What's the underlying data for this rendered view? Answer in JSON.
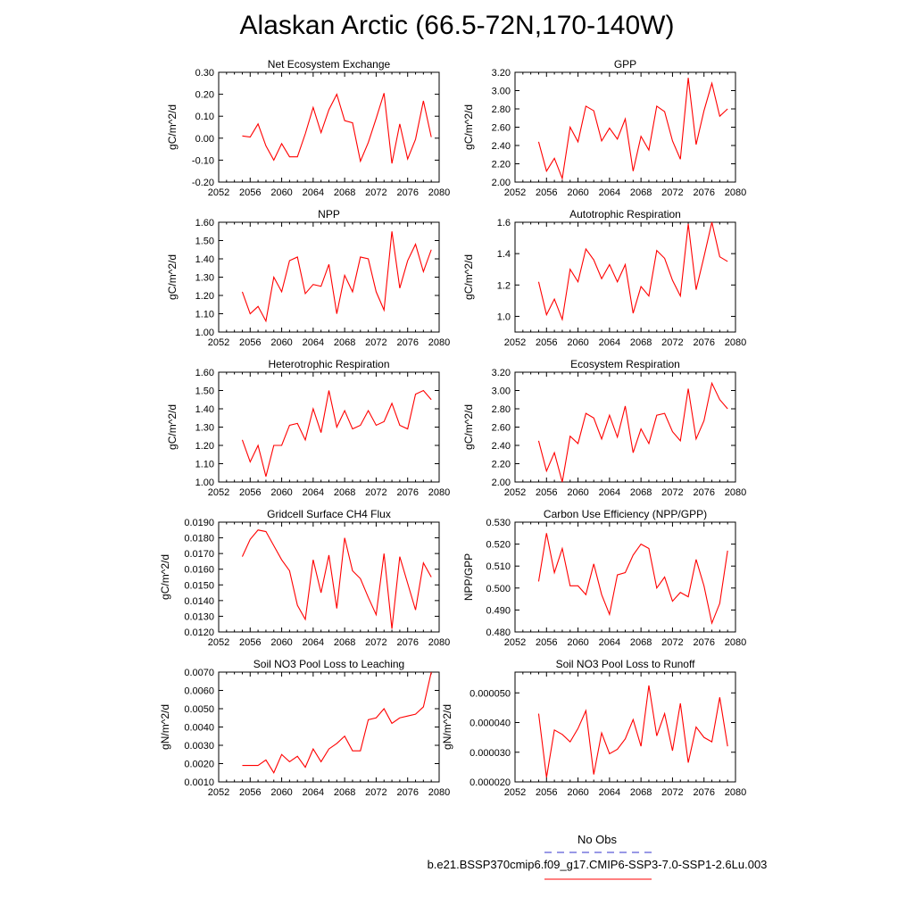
{
  "page": {
    "title": "Alaskan Arctic (66.5-72N,170-140W)"
  },
  "legend": {
    "entries": [
      {
        "label": "No Obs",
        "color": "#3333cc",
        "style": "dashed"
      },
      {
        "label": "b.e21.BSSP370cmip6.f09_g17.CMIP6-SSP3-7.0-SSP1-2.6Lu.003",
        "color": "#ff0000",
        "style": "solid"
      }
    ]
  },
  "chart_data": [
    {
      "type": "line",
      "title": "Net Ecosystem Exchange",
      "ylabel": "gC/m^2/d",
      "xlim": [
        2052,
        2080
      ],
      "xticks": [
        "2052",
        "2056",
        "2060",
        "2064",
        "2068",
        "2072",
        "2076",
        "2080"
      ],
      "ylim": [
        -0.2,
        0.3
      ],
      "yticks": [
        "-0.20",
        "-0.10",
        "0.00",
        "0.10",
        "0.20",
        "0.30"
      ],
      "x": [
        2055,
        2056,
        2057,
        2058,
        2059,
        2060,
        2061,
        2062,
        2063,
        2064,
        2065,
        2066,
        2067,
        2068,
        2069,
        2070,
        2071,
        2072,
        2073,
        2074,
        2075,
        2076,
        2077,
        2078,
        2079
      ],
      "series": [
        {
          "values": [
            0.01,
            0.005,
            0.065,
            -0.035,
            -0.1,
            -0.025,
            -0.085,
            -0.085,
            0.02,
            0.14,
            0.025,
            0.13,
            0.2,
            0.08,
            0.07,
            -0.105,
            -0.02,
            0.09,
            0.205,
            -0.115,
            0.065,
            -0.095,
            -0.005,
            0.17,
            0.005
          ],
          "color": "#ff0000"
        }
      ]
    },
    {
      "type": "line",
      "title": "GPP",
      "ylabel": "gC/m^2/d",
      "xlim": [
        2052,
        2080
      ],
      "xticks": [
        "2052",
        "2056",
        "2060",
        "2064",
        "2068",
        "2072",
        "2076",
        "2080"
      ],
      "ylim": [
        2.0,
        3.2
      ],
      "yticks": [
        "2.00",
        "2.20",
        "2.40",
        "2.60",
        "2.80",
        "3.00",
        "3.20"
      ],
      "x": [
        2055,
        2056,
        2057,
        2058,
        2059,
        2060,
        2061,
        2062,
        2063,
        2064,
        2065,
        2066,
        2067,
        2068,
        2069,
        2070,
        2071,
        2072,
        2073,
        2074,
        2075,
        2076,
        2077,
        2078,
        2079
      ],
      "series": [
        {
          "values": [
            2.44,
            2.12,
            2.26,
            2.04,
            2.6,
            2.44,
            2.83,
            2.78,
            2.45,
            2.59,
            2.47,
            2.69,
            2.12,
            2.5,
            2.35,
            2.83,
            2.77,
            2.45,
            2.25,
            3.14,
            2.41,
            2.78,
            3.08,
            2.72,
            2.8
          ],
          "color": "#ff0000"
        }
      ]
    },
    {
      "type": "line",
      "title": "NPP",
      "ylabel": "gC/m^2/d",
      "xlim": [
        2052,
        2080
      ],
      "xticks": [
        "2052",
        "2056",
        "2060",
        "2064",
        "2068",
        "2072",
        "2076",
        "2080"
      ],
      "ylim": [
        1.0,
        1.6
      ],
      "yticks": [
        "1.00",
        "1.10",
        "1.20",
        "1.30",
        "1.40",
        "1.50",
        "1.60"
      ],
      "x": [
        2055,
        2056,
        2057,
        2058,
        2059,
        2060,
        2061,
        2062,
        2063,
        2064,
        2065,
        2066,
        2067,
        2068,
        2069,
        2070,
        2071,
        2072,
        2073,
        2074,
        2075,
        2076,
        2077,
        2078,
        2079
      ],
      "series": [
        {
          "values": [
            1.22,
            1.1,
            1.14,
            1.06,
            1.3,
            1.22,
            1.39,
            1.41,
            1.21,
            1.26,
            1.25,
            1.37,
            1.1,
            1.31,
            1.22,
            1.41,
            1.4,
            1.22,
            1.12,
            1.55,
            1.24,
            1.39,
            1.48,
            1.33,
            1.45
          ],
          "color": "#ff0000"
        }
      ]
    },
    {
      "type": "line",
      "title": "Autotrophic Respiration",
      "ylabel": "gC/m^2/d",
      "xlim": [
        2052,
        2080
      ],
      "xticks": [
        "2052",
        "2056",
        "2060",
        "2064",
        "2068",
        "2072",
        "2076",
        "2080"
      ],
      "ylim": [
        0.9,
        1.6
      ],
      "yticks": [
        "1.0",
        "1.2",
        "1.4",
        "1.6"
      ],
      "x": [
        2055,
        2056,
        2057,
        2058,
        2059,
        2060,
        2061,
        2062,
        2063,
        2064,
        2065,
        2066,
        2067,
        2068,
        2069,
        2070,
        2071,
        2072,
        2073,
        2074,
        2075,
        2076,
        2077,
        2078,
        2079
      ],
      "series": [
        {
          "values": [
            1.22,
            1.01,
            1.11,
            0.98,
            1.3,
            1.22,
            1.43,
            1.36,
            1.24,
            1.33,
            1.22,
            1.33,
            1.02,
            1.19,
            1.13,
            1.42,
            1.37,
            1.23,
            1.13,
            1.59,
            1.17,
            1.38,
            1.6,
            1.38,
            1.35
          ],
          "color": "#ff0000"
        }
      ]
    },
    {
      "type": "line",
      "title": "Heterotrophic Respiration",
      "ylabel": "gC/m^2/d",
      "xlim": [
        2052,
        2080
      ],
      "xticks": [
        "2052",
        "2056",
        "2060",
        "2064",
        "2068",
        "2072",
        "2076",
        "2080"
      ],
      "ylim": [
        1.0,
        1.6
      ],
      "yticks": [
        "1.00",
        "1.10",
        "1.20",
        "1.30",
        "1.40",
        "1.50",
        "1.60"
      ],
      "x": [
        2055,
        2056,
        2057,
        2058,
        2059,
        2060,
        2061,
        2062,
        2063,
        2064,
        2065,
        2066,
        2067,
        2068,
        2069,
        2070,
        2071,
        2072,
        2073,
        2074,
        2075,
        2076,
        2077,
        2078,
        2079
      ],
      "series": [
        {
          "values": [
            1.23,
            1.11,
            1.2,
            1.03,
            1.2,
            1.2,
            1.31,
            1.32,
            1.23,
            1.4,
            1.27,
            1.5,
            1.3,
            1.39,
            1.29,
            1.31,
            1.39,
            1.31,
            1.33,
            1.43,
            1.31,
            1.29,
            1.48,
            1.5,
            1.45
          ],
          "color": "#ff0000"
        }
      ]
    },
    {
      "type": "line",
      "title": "Ecosystem Respiration",
      "ylabel": "gC/m^2/d",
      "xlim": [
        2052,
        2080
      ],
      "xticks": [
        "2052",
        "2056",
        "2060",
        "2064",
        "2068",
        "2072",
        "2076",
        "2080"
      ],
      "ylim": [
        2.0,
        3.2
      ],
      "yticks": [
        "2.00",
        "2.20",
        "2.40",
        "2.60",
        "2.80",
        "3.00",
        "3.20"
      ],
      "x": [
        2055,
        2056,
        2057,
        2058,
        2059,
        2060,
        2061,
        2062,
        2063,
        2064,
        2065,
        2066,
        2067,
        2068,
        2069,
        2070,
        2071,
        2072,
        2073,
        2074,
        2075,
        2076,
        2077,
        2078,
        2079
      ],
      "series": [
        {
          "values": [
            2.45,
            2.12,
            2.32,
            2.0,
            2.5,
            2.42,
            2.75,
            2.7,
            2.47,
            2.73,
            2.49,
            2.83,
            2.32,
            2.58,
            2.42,
            2.73,
            2.75,
            2.55,
            2.45,
            3.02,
            2.47,
            2.67,
            3.08,
            2.9,
            2.8
          ],
          "color": "#ff0000"
        }
      ]
    },
    {
      "type": "line",
      "title": "Gridcell Surface CH4 Flux",
      "ylabel": "gC/m^2/d",
      "xlim": [
        2052,
        2080
      ],
      "xticks": [
        "2052",
        "2056",
        "2060",
        "2064",
        "2068",
        "2072",
        "2076",
        "2080"
      ],
      "ylim": [
        0.012,
        0.019
      ],
      "yticks": [
        "0.0120",
        "0.0130",
        "0.0140",
        "0.0150",
        "0.0160",
        "0.0170",
        "0.0180",
        "0.0190"
      ],
      "x": [
        2055,
        2056,
        2057,
        2058,
        2059,
        2060,
        2061,
        2062,
        2063,
        2064,
        2065,
        2066,
        2067,
        2068,
        2069,
        2070,
        2071,
        2072,
        2073,
        2074,
        2075,
        2076,
        2077,
        2078,
        2079
      ],
      "series": [
        {
          "values": [
            0.0168,
            0.0179,
            0.0185,
            0.0184,
            0.0175,
            0.0166,
            0.0159,
            0.0137,
            0.0128,
            0.0166,
            0.0145,
            0.0169,
            0.0135,
            0.018,
            0.0159,
            0.0154,
            0.0142,
            0.0131,
            0.017,
            0.0122,
            0.0168,
            0.0151,
            0.0134,
            0.0164,
            0.0155
          ],
          "color": "#ff0000"
        }
      ]
    },
    {
      "type": "line",
      "title": "Carbon Use Efficiency (NPP/GPP)",
      "ylabel": "NPP/GPP",
      "xlim": [
        2052,
        2080
      ],
      "xticks": [
        "2052",
        "2056",
        "2060",
        "2064",
        "2068",
        "2072",
        "2076",
        "2080"
      ],
      "ylim": [
        0.48,
        0.53
      ],
      "yticks": [
        "0.480",
        "0.490",
        "0.500",
        "0.510",
        "0.520",
        "0.530"
      ],
      "x": [
        2055,
        2056,
        2057,
        2058,
        2059,
        2060,
        2061,
        2062,
        2063,
        2064,
        2065,
        2066,
        2067,
        2068,
        2069,
        2070,
        2071,
        2072,
        2073,
        2074,
        2075,
        2076,
        2077,
        2078,
        2079
      ],
      "series": [
        {
          "values": [
            0.503,
            0.525,
            0.507,
            0.518,
            0.501,
            0.501,
            0.497,
            0.511,
            0.497,
            0.488,
            0.506,
            0.507,
            0.515,
            0.52,
            0.518,
            0.5,
            0.505,
            0.494,
            0.498,
            0.496,
            0.513,
            0.501,
            0.484,
            0.493,
            0.517
          ],
          "color": "#ff0000"
        }
      ]
    },
    {
      "type": "line",
      "title": "Soil NO3 Pool Loss to Leaching",
      "ylabel": "gN/m^2/d",
      "xlim": [
        2052,
        2080
      ],
      "xticks": [
        "2052",
        "2056",
        "2060",
        "2064",
        "2068",
        "2072",
        "2076",
        "2080"
      ],
      "ylim": [
        0.001,
        0.007
      ],
      "yticks": [
        "0.0010",
        "0.0020",
        "0.0030",
        "0.0040",
        "0.0050",
        "0.0060",
        "0.0070"
      ],
      "x": [
        2055,
        2056,
        2057,
        2058,
        2059,
        2060,
        2061,
        2062,
        2063,
        2064,
        2065,
        2066,
        2067,
        2068,
        2069,
        2070,
        2071,
        2072,
        2073,
        2074,
        2075,
        2076,
        2077,
        2078,
        2079
      ],
      "series": [
        {
          "values": [
            0.0019,
            0.0019,
            0.0019,
            0.0022,
            0.0015,
            0.0025,
            0.0021,
            0.0024,
            0.0018,
            0.0028,
            0.0021,
            0.0028,
            0.0031,
            0.0035,
            0.0027,
            0.0027,
            0.0044,
            0.0045,
            0.005,
            0.0042,
            0.0045,
            0.0046,
            0.0047,
            0.0051,
            0.007
          ],
          "color": "#ff0000"
        }
      ]
    },
    {
      "type": "line",
      "title": "Soil NO3 Pool Loss to Runoff",
      "ylabel": "gN/m^2/d",
      "xlim": [
        2052,
        2080
      ],
      "xticks": [
        "2052",
        "2056",
        "2060",
        "2064",
        "2068",
        "2072",
        "2076",
        "2080"
      ],
      "ylim": [
        2e-05,
        5.7e-05
      ],
      "yticks": [
        "0.000020",
        "0.000030",
        "0.000040",
        "0.000050"
      ],
      "x": [
        2055,
        2056,
        2057,
        2058,
        2059,
        2060,
        2061,
        2062,
        2063,
        2064,
        2065,
        2066,
        2067,
        2068,
        2069,
        2070,
        2071,
        2072,
        2073,
        2074,
        2075,
        2076,
        2077,
        2078,
        2079
      ],
      "series": [
        {
          "values": [
            4.3e-05,
            2.15e-05,
            3.75e-05,
            3.6e-05,
            3.35e-05,
            3.8e-05,
            4.4e-05,
            2.25e-05,
            3.65e-05,
            2.95e-05,
            3.1e-05,
            3.45e-05,
            4.1e-05,
            3.2e-05,
            5.25e-05,
            3.55e-05,
            4.3e-05,
            3.05e-05,
            4.65e-05,
            2.65e-05,
            3.85e-05,
            3.5e-05,
            3.35e-05,
            4.85e-05,
            3.2e-05
          ],
          "color": "#ff0000"
        }
      ]
    }
  ]
}
